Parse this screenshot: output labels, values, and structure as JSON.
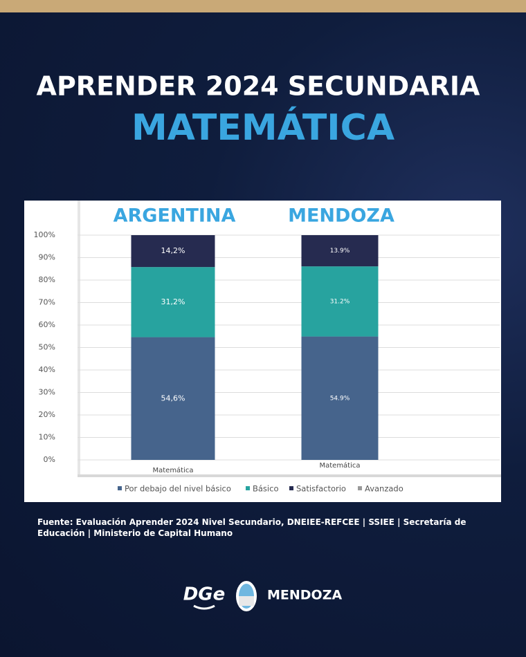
{
  "header": {
    "title": "APRENDER 2024 SECUNDARIA",
    "subtitle": "MATEMÁTICA"
  },
  "chart_data": {
    "type": "bar",
    "stacked": true,
    "annotations": [
      "ARGENTINA",
      "MENDOZA"
    ],
    "categories": [
      "Matemática",
      "Matemática"
    ],
    "series": [
      {
        "name": "Por debajo del nivel básico",
        "color": "#46648c",
        "values": [
          54.6,
          54.9
        ],
        "value_labels": [
          "54,6%",
          "54.9%"
        ]
      },
      {
        "name": "Básico",
        "color": "#27a39f",
        "values": [
          31.2,
          31.2
        ],
        "value_labels": [
          "31,2%",
          "31.2%"
        ]
      },
      {
        "name": "Satisfactorio",
        "color": "#262b50",
        "values": [
          14.2,
          13.9
        ],
        "value_labels": [
          "14,2%",
          "13.9%"
        ]
      },
      {
        "name": "Avanzado",
        "color": "#9a9a9a",
        "values": [
          0,
          0
        ]
      }
    ],
    "ylim": [
      0,
      100
    ],
    "yticks": [
      {
        "value": 0,
        "label": "0%"
      },
      {
        "value": 10,
        "label": "10%"
      },
      {
        "value": 20,
        "label": "20%"
      },
      {
        "value": 30,
        "label": "30%"
      },
      {
        "value": 40,
        "label": "40%"
      },
      {
        "value": 50,
        "label": "50%"
      },
      {
        "value": 60,
        "label": "60%"
      },
      {
        "value": 70,
        "label": "70%"
      },
      {
        "value": 80,
        "label": "80%"
      },
      {
        "value": 90,
        "label": "90%"
      },
      {
        "value": 100,
        "label": "100%"
      }
    ],
    "grid": true,
    "legend": "bottom"
  },
  "footer": {
    "source": "Fuente: Evaluación Aprender 2024 Nivel Secundario, DNEIEE-REFCEE | SSIEE | Secretaría de Educación | Ministerio de Capital Humano",
    "logo": "DGe",
    "brand": "MENDOZA"
  }
}
